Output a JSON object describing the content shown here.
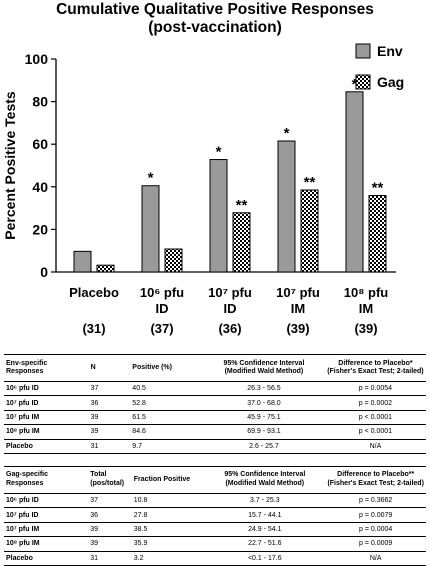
{
  "chart_data": {
    "type": "bar",
    "title": "Cumulative Qualitative Positive Responses",
    "subtitle": "(post-vaccination)",
    "ylabel": "Percent Positive Tests",
    "xlabel": "",
    "ylim": [
      0,
      100
    ],
    "yticks": [
      0,
      20,
      40,
      60,
      80,
      100
    ],
    "grid": false,
    "legend_position": "top-right",
    "categories": [
      "Placebo",
      "10⁶ pfu ID",
      "10⁷ pfu ID",
      "10⁷ pfu IM",
      "10⁸ pfu IM"
    ],
    "category_lines": [
      [
        "Placebo"
      ],
      [
        "10⁶ pfu",
        "ID"
      ],
      [
        "10⁷ pfu",
        "ID"
      ],
      [
        "10⁷ pfu",
        "IM"
      ],
      [
        "10⁸ pfu",
        "IM"
      ]
    ],
    "counts": [
      "(31)",
      "(37)",
      "(36)",
      "(39)",
      "(39)"
    ],
    "series": [
      {
        "name": "Env",
        "values": [
          9.7,
          40.5,
          52.8,
          61.5,
          84.6
        ],
        "markers": [
          "",
          "*",
          "*",
          "*",
          "*"
        ],
        "fill": "#9a9a9a"
      },
      {
        "name": "Gag",
        "values": [
          3.2,
          10.8,
          27.8,
          38.5,
          35.9
        ],
        "markers": [
          "",
          "",
          "**",
          "**",
          "**"
        ],
        "fill": "checker"
      }
    ]
  },
  "env_table": {
    "headers": [
      "Env-specific\nResponses",
      "N",
      "Positive (%)",
      "95% Confidence Interval\n(Modified Wald Method)",
      "Difference to Placebo*\n(Fisher's Exact Test; 2-tailed)"
    ],
    "rows": [
      [
        "10⁶ pfu ID",
        "37",
        "40.5",
        "26.3 - 56.5",
        "p = 0.0054"
      ],
      [
        "10⁷ pfu ID",
        "36",
        "52.8",
        "37.0 - 68.0",
        "p = 0.0002"
      ],
      [
        "10⁷ pfu IM",
        "39",
        "61.5",
        "45.9 - 75.1",
        "p < 0.0001"
      ],
      [
        "10⁸ pfu IM",
        "39",
        "84.6",
        "69.9 - 93.1",
        "p < 0.0001"
      ],
      [
        "Placebo",
        "31",
        "9.7",
        "2.6 - 25.7",
        "N/A"
      ]
    ]
  },
  "gag_table": {
    "headers": [
      "Gag-specific\nResponses",
      "Total\n(pos/total)",
      "Fraction Positive",
      "95% Confidence Interval\n(Modified Wald Method)",
      "Difference to Placebo**\n(Fisher's Exact Test; 2-tailed)"
    ],
    "rows": [
      [
        "10⁶ pfu ID",
        "37",
        "10.8",
        "3.7 - 25.3",
        "p = 0.3662"
      ],
      [
        "10⁷ pfu ID",
        "36",
        "27.8",
        "15.7 - 44.1",
        "p = 0.0079"
      ],
      [
        "10⁷ pfu IM",
        "39",
        "38.5",
        "24.9 - 54.1",
        "p = 0.0004"
      ],
      [
        "10⁸ pfu IM",
        "39",
        "35.9",
        "22.7 - 51.6",
        "p = 0.0009"
      ],
      [
        "Placebo",
        "31",
        "3.2",
        "<0.1 - 17.6",
        "N/A"
      ]
    ]
  }
}
